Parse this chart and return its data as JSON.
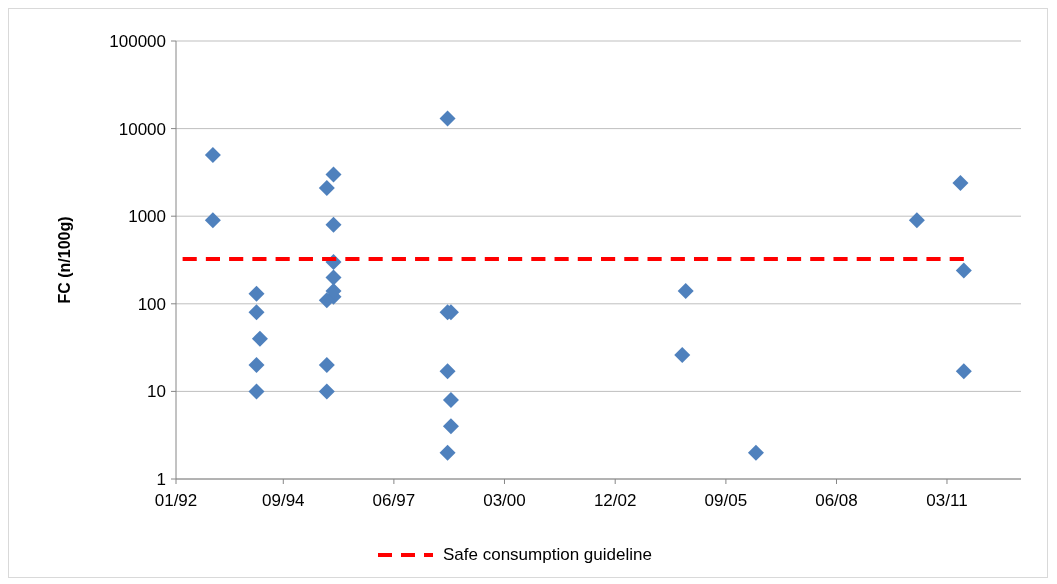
{
  "chart_data": {
    "type": "scatter",
    "ylabel": "FC (n/100g)",
    "log": true,
    "grid": "y",
    "legend": "bottom",
    "xlim": [
      "1992-01",
      "2013-01"
    ],
    "xticks": [
      {
        "value": "1992-01",
        "label": "01/92"
      },
      {
        "value": "1994-09",
        "label": "09/94"
      },
      {
        "value": "1997-06",
        "label": "06/97"
      },
      {
        "value": "2000-03",
        "label": "03/00"
      },
      {
        "value": "2002-12",
        "label": "12/02"
      },
      {
        "value": "2005-09",
        "label": "09/05"
      },
      {
        "value": "2008-06",
        "label": "06/08"
      },
      {
        "value": "2011-03",
        "label": "03/11"
      }
    ],
    "ylim": [
      1,
      100000
    ],
    "yticks": [
      1,
      10,
      100,
      1000,
      10000,
      100000
    ],
    "series": [
      {
        "color": "#4f81bd",
        "marker": "diamond",
        "x": [
          "1992-12",
          "1992-12",
          "1994-01",
          "1994-01",
          "1994-01",
          "1994-01",
          "1994-02",
          "1995-10",
          "1995-10",
          "1995-10",
          "1995-10",
          "1995-12",
          "1995-12",
          "1995-12",
          "1995-12",
          "1995-12",
          "1995-12",
          "1998-10",
          "1998-10",
          "1998-10",
          "1998-10",
          "1998-11",
          "1998-11",
          "1998-11",
          "2004-08",
          "2004-09",
          "2006-06",
          "2010-06",
          "2011-07",
          "2011-08",
          "2011-08"
        ],
        "values": [
          5000,
          900,
          130,
          80,
          20,
          10,
          40,
          2100,
          110,
          20,
          10,
          3000,
          800,
          300,
          200,
          140,
          120,
          13000,
          80,
          17,
          2,
          80,
          8,
          4,
          26,
          140,
          2,
          900,
          2400,
          240,
          17
        ]
      },
      {
        "type": "line",
        "name": "Safe consumption guideline",
        "color": "#ff0000",
        "marker": "none",
        "line_style": "dashed",
        "x": [
          "1992-03",
          "2011-08"
        ],
        "values": [
          325,
          325
        ]
      }
    ]
  }
}
